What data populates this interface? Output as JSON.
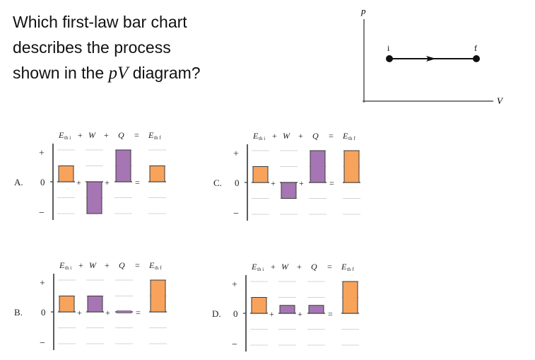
{
  "question": {
    "line1": "Which first-law bar chart",
    "line2": "describes the process",
    "line3_prefix": "shown in the ",
    "line3_math": "pV",
    "line3_suffix": " diagram?"
  },
  "pv_diagram": {
    "y_axis_label": "p",
    "x_axis_label": "V",
    "initial_label": "i",
    "final_label": "f",
    "process": "isobaric expansion (constant p, V increases)"
  },
  "colors": {
    "thermal_energy_bar": "#f7a35c",
    "work_heat_bar": "#a576b3",
    "bar_outline": "#3a3a3a",
    "gridline": "#d4d4d4",
    "axis": "#333333"
  },
  "chart_labels": {
    "eth_i": "E",
    "eth_i_sub": "th i",
    "plus": "+",
    "w": "W",
    "q": "Q",
    "equals": "=",
    "eth_f": "E",
    "eth_f_sub": "th f",
    "tick_plus": "+",
    "tick_zero": "0",
    "tick_minus": "−"
  },
  "chart_data": [
    {
      "type": "bar",
      "option": "A.",
      "categories": [
        "Eth i",
        "W",
        "Q",
        "Eth f"
      ],
      "values": [
        1,
        -2,
        2,
        1
      ],
      "ylim": [
        -2,
        2
      ],
      "grid": true
    },
    {
      "type": "bar",
      "option": "B.",
      "categories": [
        "Eth i",
        "W",
        "Q",
        "Eth f"
      ],
      "values": [
        1,
        1,
        0,
        2
      ],
      "ylim": [
        -2,
        2
      ],
      "grid": true
    },
    {
      "type": "bar",
      "option": "C.",
      "categories": [
        "Eth i",
        "W",
        "Q",
        "Eth f"
      ],
      "values": [
        1,
        -1,
        2,
        2
      ],
      "ylim": [
        -2,
        2
      ],
      "grid": true
    },
    {
      "type": "bar",
      "option": "D.",
      "categories": [
        "Eth i",
        "W",
        "Q",
        "Eth f"
      ],
      "values": [
        1,
        0.5,
        0.5,
        2
      ],
      "ylim": [
        -2,
        2
      ],
      "grid": true
    }
  ]
}
